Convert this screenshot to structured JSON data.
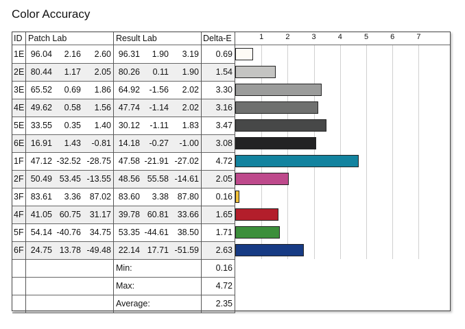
{
  "title": "Color Accuracy",
  "header": {
    "id": "ID",
    "patch_lab": "Patch Lab",
    "result_lab": "Result Lab",
    "delta_e": "Delta-E"
  },
  "summary": [
    {
      "label": "Min:",
      "value": "0.16"
    },
    {
      "label": "Max:",
      "value": "4.72"
    },
    {
      "label": "Average:",
      "value": "2.35"
    }
  ],
  "chart_data": {
    "type": "bar",
    "orientation": "horizontal",
    "title": "Color Accuracy",
    "xlim": [
      0,
      8
    ],
    "xticks": [
      "1",
      "2",
      "3",
      "4",
      "5",
      "6",
      "7"
    ],
    "grid": true,
    "rows": [
      {
        "id": "1E",
        "patch": [
          "96.04",
          "2.16",
          "2.60"
        ],
        "result": [
          "96.31",
          "1.90",
          "3.19"
        ],
        "delta_e": 0.69,
        "color": "#fdfbf5"
      },
      {
        "id": "2E",
        "patch": [
          "80.44",
          "1.17",
          "2.05"
        ],
        "result": [
          "80.26",
          "0.11",
          "1.90"
        ],
        "delta_e": 1.54,
        "color": "#c4c4c2"
      },
      {
        "id": "3E",
        "patch": [
          "65.52",
          "0.69",
          "1.86"
        ],
        "result": [
          "64.92",
          "-1.56",
          "2.02"
        ],
        "delta_e": 3.3,
        "color": "#9b9c9b"
      },
      {
        "id": "4E",
        "patch": [
          "49.62",
          "0.58",
          "1.56"
        ],
        "result": [
          "47.74",
          "-1.14",
          "2.02"
        ],
        "delta_e": 3.16,
        "color": "#6f706f"
      },
      {
        "id": "5E",
        "patch": [
          "33.55",
          "0.35",
          "1.40"
        ],
        "result": [
          "30.12",
          "-1.11",
          "1.83"
        ],
        "delta_e": 3.47,
        "color": "#474848"
      },
      {
        "id": "6E",
        "patch": [
          "16.91",
          "1.43",
          "-0.81"
        ],
        "result": [
          "14.18",
          "-0.27",
          "-1.00"
        ],
        "delta_e": 3.08,
        "color": "#232324"
      },
      {
        "id": "1F",
        "patch": [
          "47.12",
          "-32.52",
          "-28.75"
        ],
        "result": [
          "47.58",
          "-21.91",
          "-27.02"
        ],
        "delta_e": 4.72,
        "color": "#13839f"
      },
      {
        "id": "2F",
        "patch": [
          "50.49",
          "53.45",
          "-13.55"
        ],
        "result": [
          "48.56",
          "55.58",
          "-14.61"
        ],
        "delta_e": 2.05,
        "color": "#be4a8c"
      },
      {
        "id": "3F",
        "patch": [
          "83.61",
          "3.36",
          "87.02"
        ],
        "result": [
          "83.60",
          "3.38",
          "87.80"
        ],
        "delta_e": 0.16,
        "color": "#f2c23a"
      },
      {
        "id": "4F",
        "patch": [
          "41.05",
          "60.75",
          "31.17"
        ],
        "result": [
          "39.78",
          "60.81",
          "33.66"
        ],
        "delta_e": 1.65,
        "color": "#b31e2b"
      },
      {
        "id": "5F",
        "patch": [
          "54.14",
          "-40.76",
          "34.75"
        ],
        "result": [
          "53.35",
          "-44.61",
          "38.50"
        ],
        "delta_e": 1.71,
        "color": "#3c8f3b"
      },
      {
        "id": "6F",
        "patch": [
          "24.75",
          "13.78",
          "-49.48"
        ],
        "result": [
          "22.14",
          "17.71",
          "-51.59"
        ],
        "delta_e": 2.63,
        "color": "#173b84"
      }
    ]
  }
}
